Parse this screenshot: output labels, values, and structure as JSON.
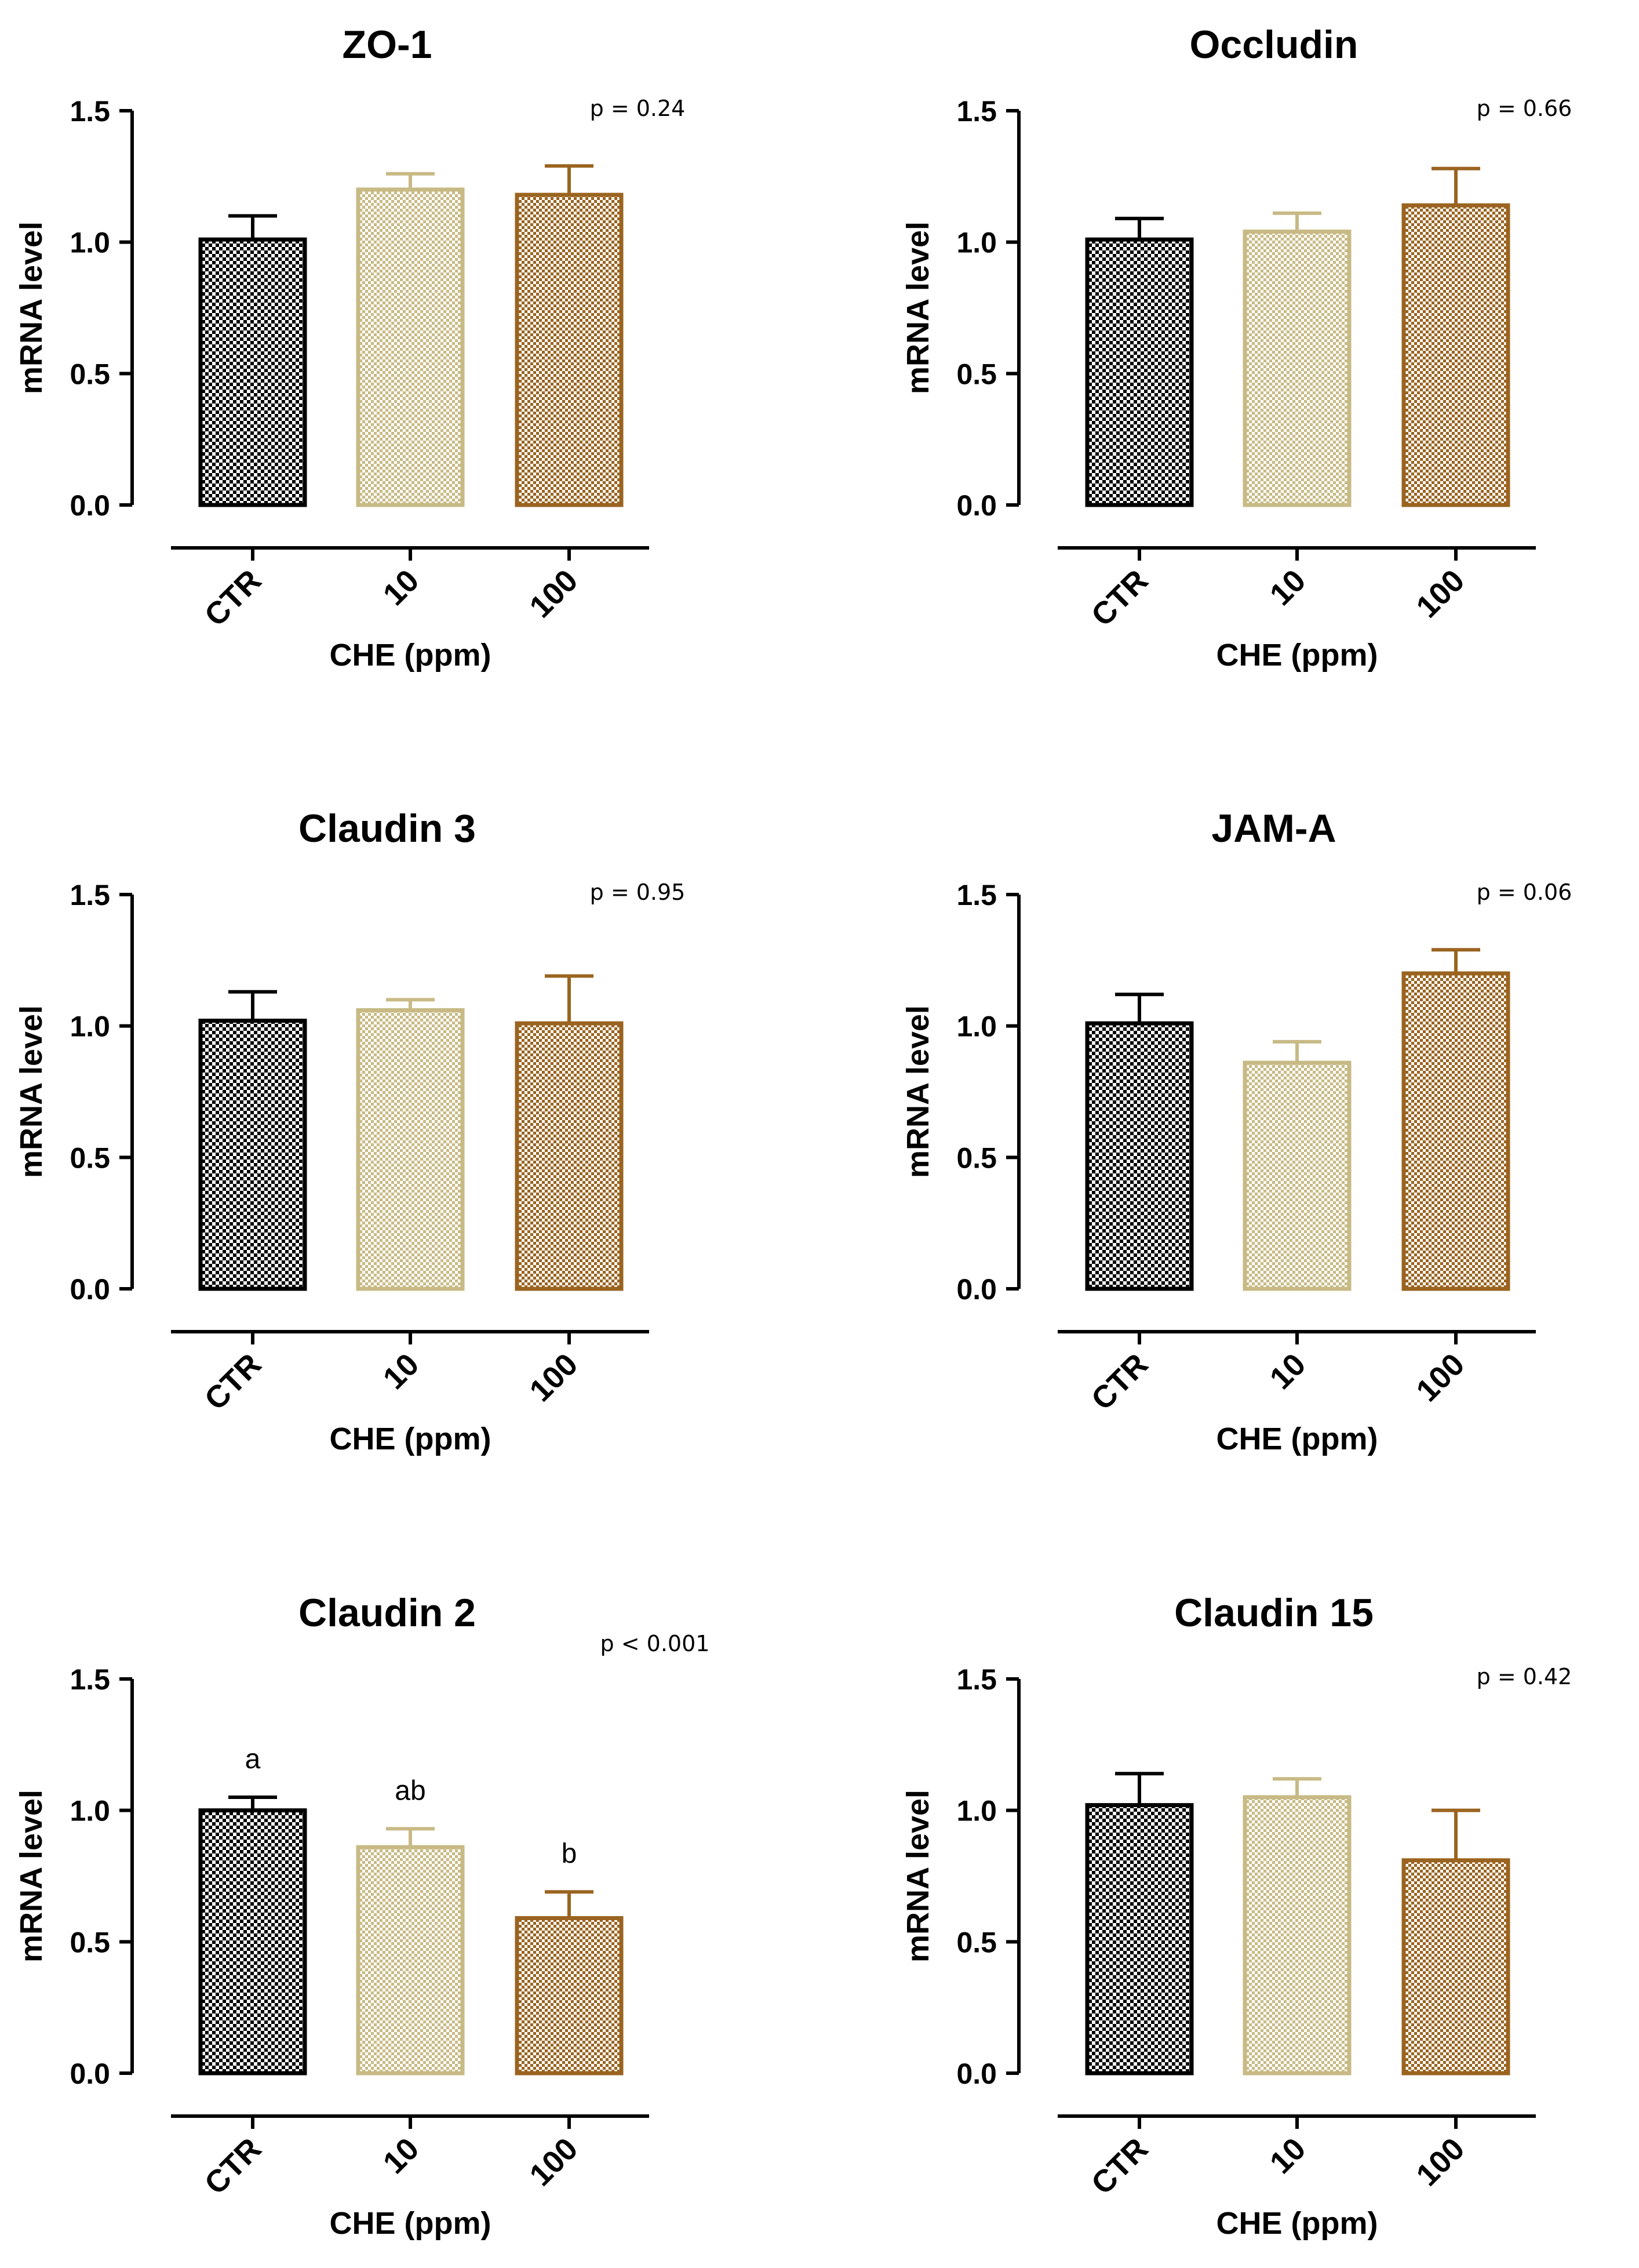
{
  "colors": {
    "CTR": "#000000",
    "10": "#c8ba85",
    "100": "#9a6420",
    "axis": "#000000"
  },
  "chart_data": [
    {
      "type": "bar",
      "title": "ZO-1",
      "p_value": "p = 0.24",
      "categories": [
        "CTR",
        "10",
        "100"
      ],
      "values": [
        1.01,
        1.2,
        1.18
      ],
      "errors": [
        0.09,
        0.06,
        0.11
      ],
      "ylabel": "mRNA level",
      "xlabel": "CHE (ppm)",
      "ylim": [
        0,
        1.5
      ],
      "yticks": [
        "0.0",
        "0.5",
        "1.0",
        "1.5"
      ],
      "sig_letters": []
    },
    {
      "type": "bar",
      "title": "Occludin",
      "p_value": "p = 0.66",
      "categories": [
        "CTR",
        "10",
        "100"
      ],
      "values": [
        1.01,
        1.04,
        1.14
      ],
      "errors": [
        0.08,
        0.07,
        0.14
      ],
      "ylabel": "mRNA level",
      "xlabel": "CHE (ppm)",
      "ylim": [
        0,
        1.5
      ],
      "yticks": [
        "0.0",
        "0.5",
        "1.0",
        "1.5"
      ],
      "sig_letters": []
    },
    {
      "type": "bar",
      "title": "Claudin 3",
      "p_value": "p = 0.95",
      "categories": [
        "CTR",
        "10",
        "100"
      ],
      "values": [
        1.02,
        1.06,
        1.01
      ],
      "errors": [
        0.11,
        0.04,
        0.18
      ],
      "ylabel": "mRNA level",
      "xlabel": "CHE (ppm)",
      "ylim": [
        0,
        1.5
      ],
      "yticks": [
        "0.0",
        "0.5",
        "1.0",
        "1.5"
      ],
      "sig_letters": []
    },
    {
      "type": "bar",
      "title": "JAM-A",
      "p_value": "p = 0.06",
      "categories": [
        "CTR",
        "10",
        "100"
      ],
      "values": [
        1.01,
        0.86,
        1.2
      ],
      "errors": [
        0.11,
        0.08,
        0.09
      ],
      "ylabel": "mRNA level",
      "xlabel": "CHE (ppm)",
      "ylim": [
        0,
        1.5
      ],
      "yticks": [
        "0.0",
        "0.5",
        "1.0",
        "1.5"
      ],
      "sig_letters": []
    },
    {
      "type": "bar",
      "title": "Claudin 2",
      "p_value": "p < 0.001",
      "categories": [
        "CTR",
        "10",
        "100"
      ],
      "values": [
        1.0,
        0.86,
        0.59
      ],
      "errors": [
        0.05,
        0.07,
        0.1
      ],
      "ylabel": "mRNA level",
      "xlabel": "CHE (ppm)",
      "ylim": [
        0,
        1.5
      ],
      "yticks": [
        "0.0",
        "0.5",
        "1.0",
        "1.5"
      ],
      "sig_letters": [
        "a",
        "ab",
        "b"
      ]
    },
    {
      "type": "bar",
      "title": "Claudin 15",
      "p_value": "p = 0.42",
      "categories": [
        "CTR",
        "10",
        "100"
      ],
      "values": [
        1.02,
        1.05,
        0.81
      ],
      "errors": [
        0.12,
        0.07,
        0.19
      ],
      "ylabel": "mRNA level",
      "xlabel": "CHE (ppm)",
      "ylim": [
        0,
        1.5
      ],
      "yticks": [
        "0.0",
        "0.5",
        "1.0",
        "1.5"
      ],
      "sig_letters": []
    }
  ]
}
